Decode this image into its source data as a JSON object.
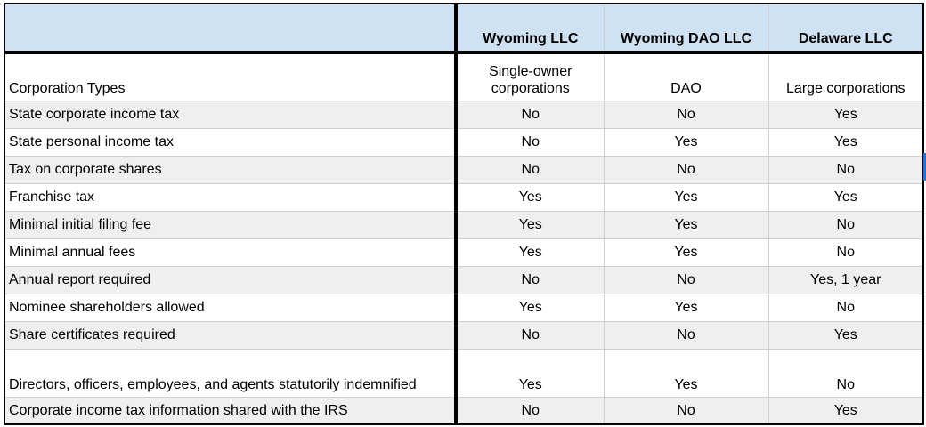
{
  "table": {
    "columns": [
      "",
      "Wyoming LLC",
      "Wyoming DAO LLC",
      "Delaware LLC"
    ],
    "rows": [
      {
        "label": "Corporation Types",
        "values": [
          "Single-owner corporations",
          "DAO",
          "Large corporations"
        ]
      },
      {
        "label": "State corporate income tax",
        "values": [
          "No",
          "No",
          "Yes"
        ]
      },
      {
        "label": "State personal income tax",
        "values": [
          "No",
          "Yes",
          "Yes"
        ]
      },
      {
        "label": "Tax on corporate shares",
        "values": [
          "No",
          "No",
          "No"
        ]
      },
      {
        "label": "Franchise tax",
        "values": [
          "Yes",
          "Yes",
          "Yes"
        ]
      },
      {
        "label": "Minimal initial filing fee",
        "values": [
          "Yes",
          "Yes",
          "No"
        ]
      },
      {
        "label": "Minimal annual fees",
        "values": [
          "Yes",
          "Yes",
          "No"
        ]
      },
      {
        "label": "Annual report required",
        "values": [
          "No",
          "No",
          "Yes, 1 year"
        ]
      },
      {
        "label": "Nominee shareholders allowed",
        "values": [
          "Yes",
          "Yes",
          "No"
        ]
      },
      {
        "label": "Share certificates required",
        "values": [
          "No",
          "No",
          "Yes"
        ]
      },
      {
        "label": "Directors, officers, employees, and agents statutorily indemnified",
        "values": [
          "Yes",
          "Yes",
          "No"
        ]
      },
      {
        "label": "Corporate income tax information shared with the IRS",
        "values": [
          "No",
          "No",
          "Yes"
        ]
      }
    ]
  },
  "colors": {
    "header_bg": "#cfe2f3",
    "stripe_bg": "#efefef",
    "border": "#000000",
    "selection_marker": "#1a73e8"
  }
}
